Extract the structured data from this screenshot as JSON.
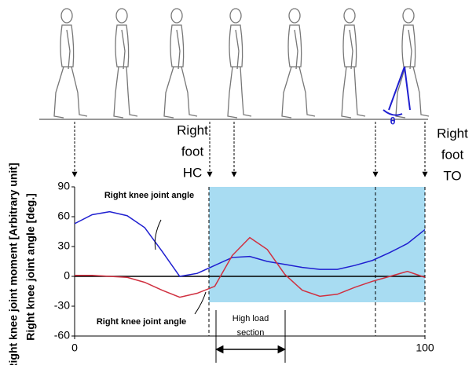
{
  "chart_data": {
    "type": "line",
    "x": [
      0,
      5,
      10,
      15,
      20,
      25,
      30,
      35,
      40,
      45,
      50,
      55,
      60,
      65,
      70,
      75,
      80,
      85,
      90,
      95,
      100
    ],
    "series": [
      {
        "name": "Right knee joint angle",
        "color": "#1f1fd0",
        "values": [
          53,
          62,
          65,
          61,
          49,
          25,
          0,
          3,
          11,
          19,
          20,
          15,
          12,
          9,
          7,
          7,
          11,
          16,
          24,
          33,
          47
        ]
      },
      {
        "name": "Right knee joint angle",
        "color": "#d03040",
        "values": [
          1,
          1,
          0,
          -1,
          -6,
          -14,
          -21,
          -17,
          -10,
          21,
          39,
          27,
          2,
          -14,
          -20,
          -18,
          -11,
          -5,
          0,
          5,
          -1
        ]
      }
    ],
    "xlim": [
      0,
      100
    ],
    "xticks": [
      0,
      100
    ],
    "ylim": [
      -60,
      90
    ],
    "yticks": [
      -60,
      -30,
      0,
      30,
      60,
      90
    ],
    "ylabel": [
      "Right knee joint moment [Arbitrary unit]",
      "Right knee joint angle [deg.]"
    ],
    "hc_label": [
      "Right",
      "foot",
      "HC"
    ],
    "to_label": [
      "Right",
      "foot",
      "TO"
    ],
    "section_label": [
      "High load",
      "section"
    ],
    "theta": "θ"
  }
}
